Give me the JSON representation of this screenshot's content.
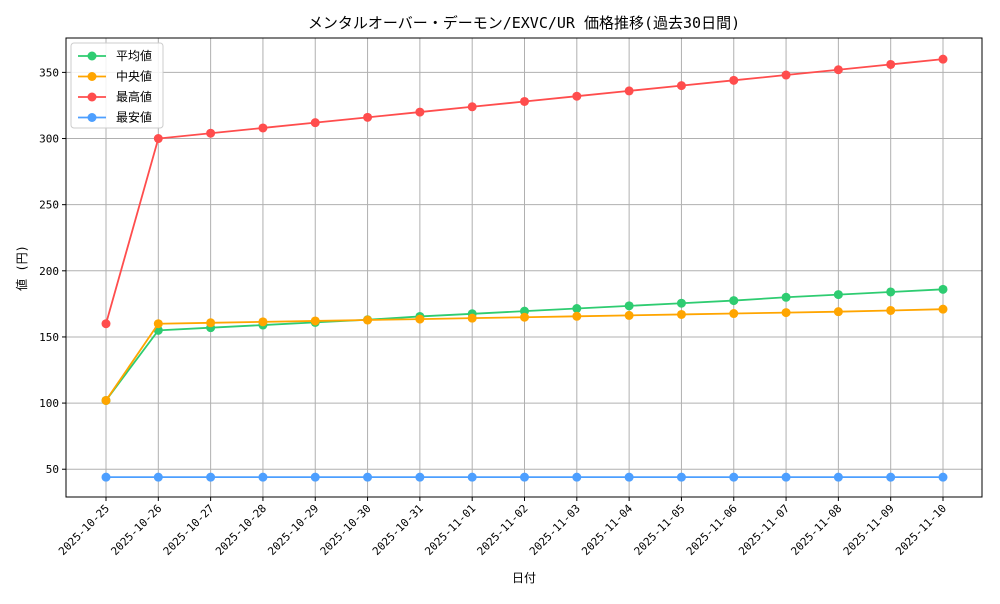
{
  "chart_data": {
    "type": "line",
    "title": "メンタルオーバー・デーモン/EXVC/UR 価格推移(過去30日間)",
    "xlabel": "日付",
    "ylabel": "値 (円)",
    "ylim": [
      29,
      376
    ],
    "yticks": [
      50,
      100,
      150,
      200,
      250,
      300,
      350
    ],
    "grid": true,
    "legend_position": "top-left",
    "x": [
      "2025-10-25",
      "2025-10-26",
      "2025-10-27",
      "2025-10-28",
      "2025-10-29",
      "2025-10-30",
      "2025-10-31",
      "2025-11-01",
      "2025-11-02",
      "2025-11-03",
      "2025-11-04",
      "2025-11-05",
      "2025-11-06",
      "2025-11-07",
      "2025-11-08",
      "2025-11-09",
      "2025-11-10"
    ],
    "series": [
      {
        "name": "平均値",
        "color": "#2ecc71",
        "values": [
          102,
          155,
          157,
          159,
          161,
          163,
          165.5,
          167.5,
          169.5,
          171.5,
          173.5,
          175.5,
          177.5,
          180,
          182,
          184,
          186
        ]
      },
      {
        "name": "中央値",
        "color": "#ffa500",
        "values": [
          102,
          160,
          160.7,
          161.4,
          162.1,
          162.8,
          163.5,
          164.2,
          164.9,
          165.6,
          166.3,
          167,
          167.7,
          168.4,
          169.1,
          170,
          171
        ]
      },
      {
        "name": "最高値",
        "color": "#ff4d4d",
        "values": [
          160,
          300,
          304,
          308,
          312,
          316,
          320,
          324,
          328,
          332,
          336,
          340,
          344,
          348,
          352,
          356,
          360
        ]
      },
      {
        "name": "最安値",
        "color": "#4d9fff",
        "values": [
          44,
          44,
          44,
          44,
          44,
          44,
          44,
          44,
          44,
          44,
          44,
          44,
          44,
          44,
          44,
          44,
          44
        ]
      }
    ]
  }
}
